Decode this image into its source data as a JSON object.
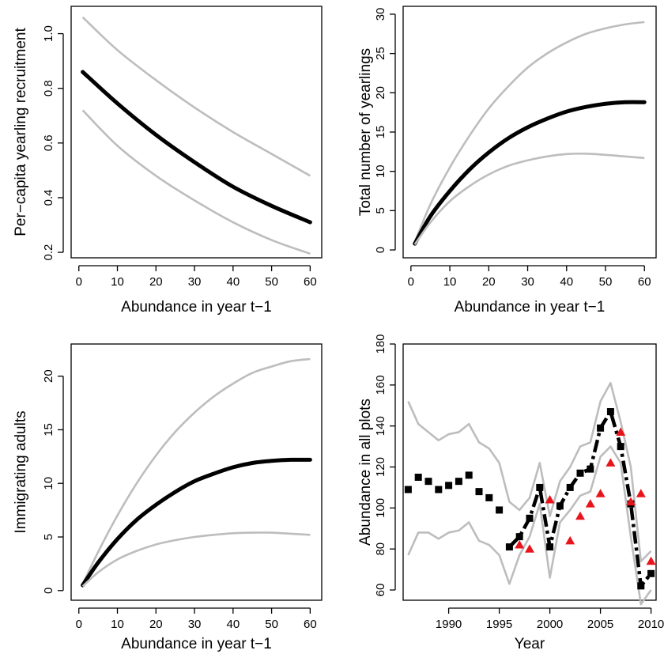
{
  "colors": {
    "ci": "#bdbdbd",
    "mean": "#000000",
    "points": "#000000",
    "observed": "#e8141b"
  },
  "chart_data": [
    {
      "id": "panel-a",
      "type": "line",
      "xlabel": "Abundance in year t−1",
      "ylabel": "Per−capita yearling recruitment",
      "xlim": [
        -2,
        63
      ],
      "ylim": [
        0.18,
        1.1
      ],
      "xticks": [
        0,
        10,
        20,
        30,
        40,
        50,
        60
      ],
      "yticks": [
        0.2,
        0.4,
        0.6,
        0.8,
        1.0
      ],
      "ytick_labels": [
        "0.2",
        "0.4",
        "0.6",
        "0.8",
        "1.0"
      ],
      "series": [
        {
          "role": "upper",
          "x": [
            1,
            10,
            20,
            30,
            40,
            50,
            60
          ],
          "y": [
            1.06,
            0.94,
            0.83,
            0.73,
            0.64,
            0.56,
            0.48
          ]
        },
        {
          "role": "mean",
          "x": [
            1,
            10,
            20,
            30,
            40,
            50,
            60
          ],
          "y": [
            0.86,
            0.745,
            0.63,
            0.53,
            0.44,
            0.37,
            0.31
          ]
        },
        {
          "role": "lower",
          "x": [
            1,
            10,
            20,
            30,
            40,
            50,
            60
          ],
          "y": [
            0.72,
            0.59,
            0.48,
            0.39,
            0.31,
            0.245,
            0.195
          ]
        }
      ]
    },
    {
      "id": "panel-b",
      "type": "line",
      "xlabel": "Abundance in year t−1",
      "ylabel": "Total number of yearlings",
      "xlim": [
        -2,
        63
      ],
      "ylim": [
        -1,
        31
      ],
      "xticks": [
        0,
        10,
        20,
        30,
        40,
        50,
        60
      ],
      "yticks": [
        0,
        5,
        10,
        15,
        20,
        25,
        30
      ],
      "ytick_labels": [
        "0",
        "5",
        "10",
        "15",
        "20",
        "25",
        "30"
      ],
      "series": [
        {
          "role": "upper",
          "x": [
            1,
            5,
            10,
            15,
            20,
            25,
            30,
            35,
            40,
            45,
            50,
            55,
            60
          ],
          "y": [
            1.0,
            5.8,
            10.5,
            14.5,
            18.0,
            20.8,
            23.2,
            25.0,
            26.4,
            27.5,
            28.2,
            28.7,
            29.0
          ]
        },
        {
          "role": "mean",
          "x": [
            1,
            5,
            10,
            15,
            20,
            25,
            30,
            35,
            40,
            45,
            50,
            55,
            60
          ],
          "y": [
            0.8,
            4.3,
            7.5,
            10.2,
            12.4,
            14.2,
            15.6,
            16.7,
            17.6,
            18.2,
            18.6,
            18.8,
            18.8
          ]
        },
        {
          "role": "lower",
          "x": [
            1,
            5,
            10,
            15,
            20,
            25,
            30,
            35,
            40,
            45,
            50,
            55,
            60
          ],
          "y": [
            0.7,
            3.5,
            6.2,
            8.1,
            9.6,
            10.7,
            11.4,
            11.9,
            12.2,
            12.25,
            12.1,
            11.9,
            11.7
          ]
        }
      ]
    },
    {
      "id": "panel-c",
      "type": "line",
      "xlabel": "Abundance in year t−1",
      "ylabel": "Immigrating adults",
      "xlim": [
        -2,
        63
      ],
      "ylim": [
        -0.9,
        23
      ],
      "xticks": [
        0,
        10,
        20,
        30,
        40,
        50,
        60
      ],
      "yticks": [
        0,
        5,
        10,
        15,
        20
      ],
      "ytick_labels": [
        "0",
        "5",
        "10",
        "15",
        "20"
      ],
      "series": [
        {
          "role": "upper",
          "x": [
            1,
            5,
            10,
            15,
            20,
            25,
            30,
            35,
            40,
            45,
            50,
            55,
            60
          ],
          "y": [
            0.6,
            3.6,
            7.0,
            10.0,
            12.6,
            14.8,
            16.6,
            18.1,
            19.3,
            20.3,
            20.9,
            21.4,
            21.6
          ]
        },
        {
          "role": "mean",
          "x": [
            1,
            5,
            10,
            15,
            20,
            25,
            30,
            35,
            40,
            45,
            50,
            55,
            60
          ],
          "y": [
            0.5,
            2.6,
            4.8,
            6.6,
            8.0,
            9.2,
            10.2,
            10.9,
            11.5,
            11.9,
            12.1,
            12.2,
            12.2
          ]
        },
        {
          "role": "lower",
          "x": [
            1,
            5,
            10,
            15,
            20,
            25,
            30,
            35,
            40,
            45,
            50,
            55,
            60
          ],
          "y": [
            0.4,
            1.7,
            2.9,
            3.7,
            4.3,
            4.7,
            5.0,
            5.2,
            5.35,
            5.4,
            5.4,
            5.3,
            5.2
          ]
        }
      ]
    },
    {
      "id": "panel-d",
      "type": "line",
      "xlabel": "Year",
      "ylabel": "Abundance in all plots",
      "xlim": [
        1985.5,
        2010.5
      ],
      "ylim": [
        55,
        180
      ],
      "xticks": [
        1990,
        1995,
        2000,
        2005,
        2010
      ],
      "yticks": [
        60,
        80,
        100,
        120,
        140,
        160,
        180
      ],
      "ytick_labels": [
        "60",
        "80",
        "100",
        "120",
        "140",
        "160",
        "180"
      ],
      "series": [
        {
          "role": "upper",
          "x": [
            1986,
            1987,
            1988,
            1989,
            1990,
            1991,
            1992,
            1993,
            1994,
            1995,
            1996,
            1997,
            1998,
            1999,
            2000,
            2001,
            2002,
            2003,
            2004,
            2005,
            2006,
            2007,
            2008,
            2009,
            2010
          ],
          "y": [
            152,
            141,
            137,
            133,
            136,
            137,
            141,
            132,
            129,
            122,
            103,
            99,
            105,
            122,
            96,
            113,
            120,
            130,
            132,
            152,
            161,
            142,
            120,
            74,
            79
          ]
        },
        {
          "role": "lower",
          "x": [
            1986,
            1987,
            1988,
            1989,
            1990,
            1991,
            1992,
            1993,
            1994,
            1995,
            1996,
            1997,
            1998,
            1999,
            2000,
            2001,
            2002,
            2003,
            2004,
            2005,
            2006,
            2007,
            2008,
            2009,
            2010
          ],
          "y": [
            77,
            88,
            88,
            85,
            88,
            89,
            93,
            84,
            82,
            77,
            63,
            77,
            86,
            102,
            66,
            93,
            99,
            106,
            108,
            125,
            130,
            122,
            86,
            53,
            60
          ]
        },
        {
          "role": "mean-dashed",
          "x": [
            1996,
            1997,
            1998,
            1999,
            2000,
            2001,
            2002,
            2003,
            2004,
            2005,
            2006,
            2007,
            2008,
            2009,
            2010
          ],
          "y": [
            81,
            86,
            95,
            110,
            81,
            101,
            110,
            117,
            119,
            139,
            147,
            130,
            102,
            62,
            68
          ]
        },
        {
          "role": "estimated-points",
          "name": "",
          "marker": "square",
          "x": [
            1986,
            1987,
            1988,
            1989,
            1990,
            1991,
            1992,
            1993,
            1994,
            1995,
            1996,
            1997,
            1998,
            1999,
            2000,
            2001,
            2002,
            2003,
            2004,
            2005,
            2006,
            2007,
            2008,
            2009,
            2010
          ],
          "y": [
            109,
            115,
            113,
            109,
            111,
            113,
            116,
            108,
            105,
            99,
            81,
            86,
            95,
            110,
            81,
            101,
            110,
            117,
            119,
            139,
            147,
            130,
            102,
            62,
            68
          ]
        },
        {
          "role": "observed-points",
          "name": "",
          "marker": "triangle",
          "x": [
            1997,
            1998,
            2000,
            2002,
            2003,
            2004,
            2005,
            2006,
            2007,
            2008,
            2009,
            2010
          ],
          "y": [
            82,
            80,
            104,
            84,
            96,
            102,
            107,
            122,
            137,
            103,
            107,
            74
          ]
        }
      ]
    }
  ]
}
